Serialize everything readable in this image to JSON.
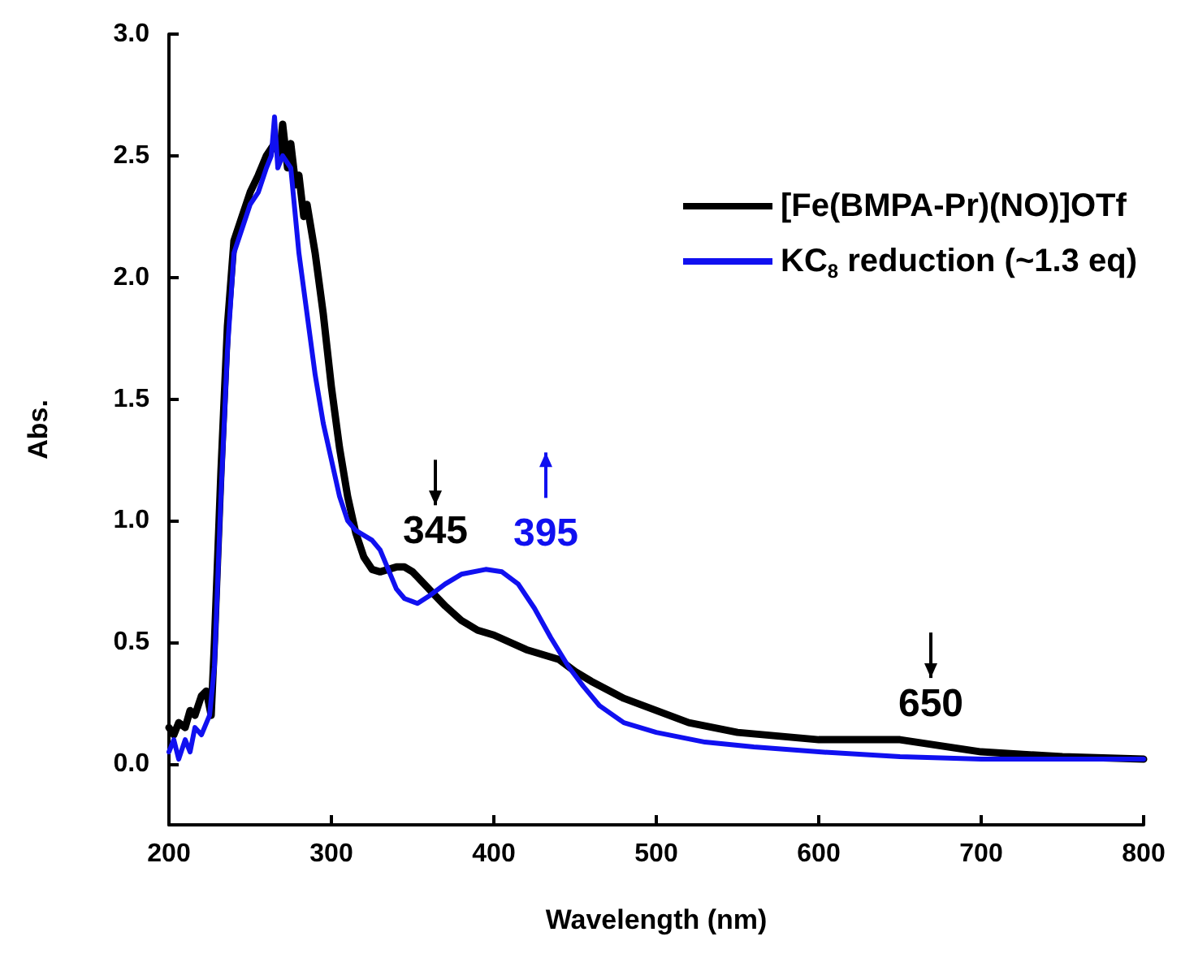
{
  "chart_data": {
    "type": "line",
    "xlabel": "Wavelength (nm)",
    "ylabel": "Abs.",
    "xlim": [
      200,
      800
    ],
    "xticks": [
      200,
      300,
      400,
      500,
      600,
      700,
      800
    ],
    "ylim": [
      -0.25,
      3.0
    ],
    "yticks": [
      {
        "value": 0,
        "label": "0.0"
      },
      0.5,
      {
        "value": 1,
        "label": "1.0"
      },
      1.5,
      {
        "value": 2,
        "label": "2.0"
      },
      2.5,
      {
        "value": 3,
        "label": "3.0"
      }
    ],
    "grid": false,
    "legend": "top right",
    "marker": "none",
    "line_style": "solid",
    "series": [
      {
        "name": "[Fe(BMPA-Pr)(NO)]OTf",
        "color": "#000000",
        "x": [
          200,
          203,
          206,
          210,
          213,
          216,
          220,
          223,
          226,
          228,
          232,
          236,
          240,
          245,
          250,
          255,
          260,
          265,
          268,
          270,
          273,
          275,
          278,
          280,
          283,
          285,
          290,
          295,
          300,
          305,
          310,
          315,
          320,
          325,
          330,
          340,
          345,
          350,
          360,
          370,
          380,
          390,
          400,
          420,
          440,
          446,
          450,
          460,
          480,
          500,
          520,
          550,
          600,
          650,
          700,
          750,
          800
        ],
        "values": [
          0.15,
          0.12,
          0.17,
          0.15,
          0.22,
          0.2,
          0.28,
          0.3,
          0.2,
          0.5,
          1.2,
          1.8,
          2.15,
          2.25,
          2.35,
          2.42,
          2.5,
          2.55,
          2.5,
          2.63,
          2.45,
          2.55,
          2.38,
          2.42,
          2.25,
          2.3,
          2.1,
          1.85,
          1.55,
          1.3,
          1.1,
          0.95,
          0.85,
          0.8,
          0.79,
          0.81,
          0.81,
          0.79,
          0.72,
          0.65,
          0.59,
          0.55,
          0.53,
          0.47,
          0.43,
          0.4,
          0.38,
          0.34,
          0.27,
          0.22,
          0.17,
          0.13,
          0.1,
          0.1,
          0.05,
          0.03,
          0.02
        ]
      },
      {
        "name": "KC$_{8}$ reduction (~1.3 eq)",
        "color": "#1010f0",
        "x": [
          200,
          203,
          206,
          210,
          213,
          216,
          220,
          225,
          228,
          232,
          236,
          240,
          245,
          250,
          255,
          260,
          263,
          265,
          267,
          270,
          275,
          280,
          285,
          290,
          295,
          300,
          305,
          310,
          315,
          320,
          325,
          330,
          335,
          340,
          345,
          353,
          360,
          370,
          380,
          395,
          405,
          415,
          425,
          435,
          446,
          455,
          465,
          480,
          500,
          530,
          560,
          600,
          650,
          700,
          750,
          800
        ],
        "values": [
          0.05,
          0.1,
          0.02,
          0.1,
          0.05,
          0.15,
          0.12,
          0.2,
          0.4,
          1.1,
          1.7,
          2.1,
          2.2,
          2.3,
          2.35,
          2.45,
          2.5,
          2.66,
          2.45,
          2.5,
          2.45,
          2.1,
          1.85,
          1.6,
          1.4,
          1.25,
          1.1,
          1.0,
          0.96,
          0.94,
          0.92,
          0.88,
          0.8,
          0.72,
          0.68,
          0.66,
          0.69,
          0.74,
          0.78,
          0.8,
          0.79,
          0.74,
          0.64,
          0.52,
          0.4,
          0.32,
          0.24,
          0.17,
          0.13,
          0.09,
          0.07,
          0.05,
          0.03,
          0.02,
          0.02,
          0.02
        ]
      }
    ],
    "annotations": [
      {
        "text": "345",
        "x": 345,
        "y": 0.81
      },
      {
        "text": "395",
        "x": 395,
        "y": 0.8
      },
      {
        "text": "650",
        "x": 650,
        "y": 0.1
      }
    ]
  }
}
